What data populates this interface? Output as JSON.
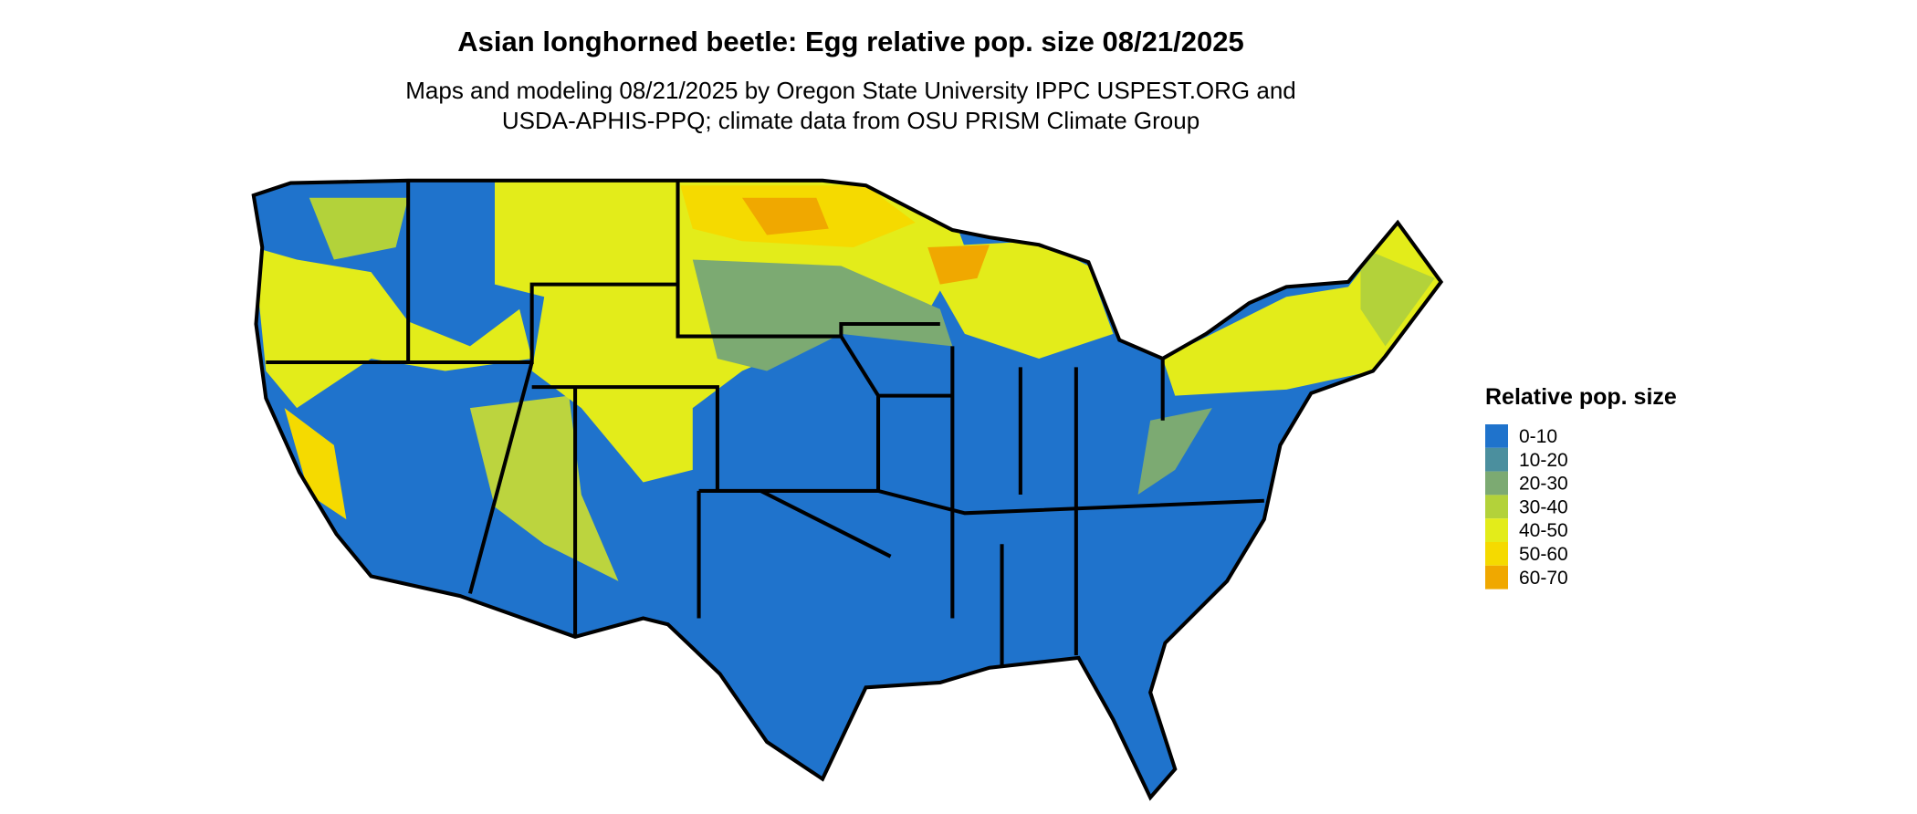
{
  "header": {
    "title": "Asian longhorned beetle: Egg relative pop. size 08/21/2025",
    "subtitle": [
      "Maps and modeling 08/21/2025 by Oregon State University IPPC USPEST.ORG and",
      "USDA-APHIS-PPQ; climate data from OSU PRISM Climate Group"
    ]
  },
  "legend": {
    "title": "Relative pop. size",
    "items": [
      {
        "label": "0-10",
        "color": "#1f73cc"
      },
      {
        "label": "10-20",
        "color": "#4b8f9e"
      },
      {
        "label": "20-30",
        "color": "#7caa72"
      },
      {
        "label": "30-40",
        "color": "#b3d23a"
      },
      {
        "label": "40-50",
        "color": "#e3ec1a"
      },
      {
        "label": "50-60",
        "color": "#f5da00"
      },
      {
        "label": "60-70",
        "color": "#f0a800"
      }
    ]
  }
}
